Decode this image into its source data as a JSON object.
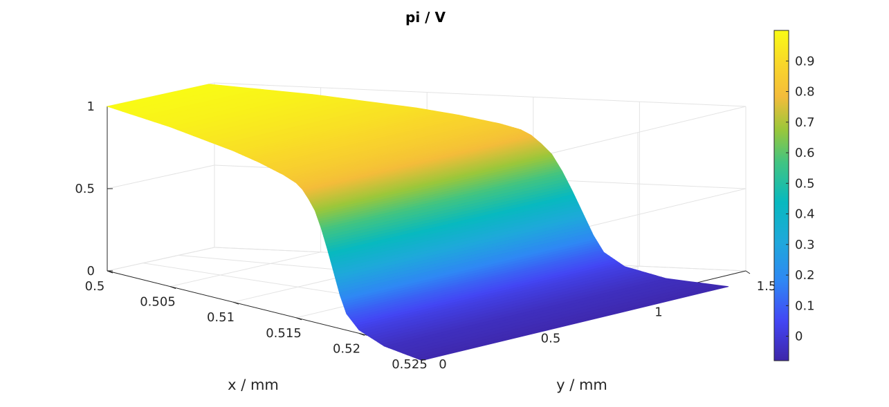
{
  "chart_data": {
    "type": "surface",
    "title": "pi / V",
    "xlabel": "x / mm",
    "ylabel": "y / mm",
    "zlabel": "",
    "xlim": [
      0.5,
      0.525
    ],
    "ylim": [
      0,
      1.5
    ],
    "zlim": [
      0,
      1
    ],
    "x_ticks": [
      "0.5",
      "0.505",
      "0.51",
      "0.515",
      "0.52",
      "0.525"
    ],
    "y_ticks": [
      "0",
      "0.5",
      "1",
      "1.5"
    ],
    "z_ticks": [
      "0",
      "0.5",
      "1"
    ],
    "colorbar": {
      "colormap": "parula",
      "limits": [
        -0.08,
        1.0
      ],
      "ticks": [
        "0",
        "0.1",
        "0.2",
        "0.3",
        "0.4",
        "0.5",
        "0.6",
        "0.7",
        "0.8",
        "0.9"
      ]
    },
    "grid": true,
    "surface_profile": {
      "description_axis": "x",
      "x": [
        0.5,
        0.505,
        0.51,
        0.512,
        0.514,
        0.515,
        0.5155,
        0.516,
        0.5165,
        0.517,
        0.5175,
        0.518,
        0.5185,
        0.519,
        0.52,
        0.522,
        0.525
      ],
      "z": [
        1.0,
        0.97,
        0.92,
        0.89,
        0.85,
        0.82,
        0.79,
        0.74,
        0.68,
        0.58,
        0.46,
        0.33,
        0.2,
        0.1,
        0.02,
        -0.04,
        -0.07
      ]
    }
  }
}
